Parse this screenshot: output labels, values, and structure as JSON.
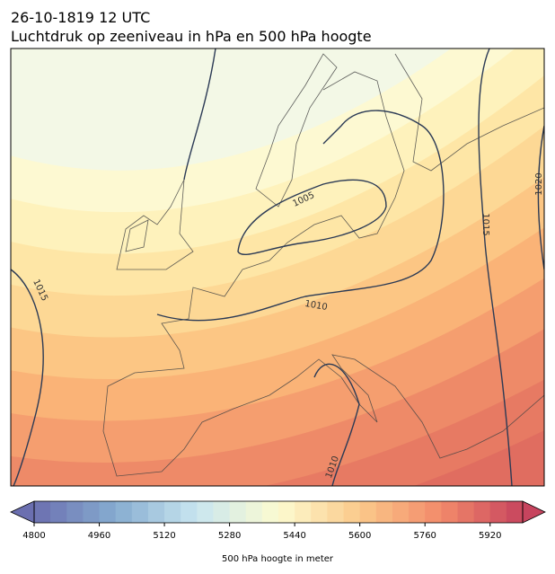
{
  "title": [
    "26-10-1819 12 UTC",
    "Luchtdruk op zeeniveau in hPa en 500 hPa hoogte"
  ],
  "isobar_labels": [
    1005,
    1010,
    1015,
    1015,
    1020,
    1010
  ],
  "colorbar": {
    "label": "500 hPa hoogte in meter",
    "range": [
      4800,
      6000
    ],
    "step": 40,
    "ticks": [
      4800,
      4960,
      5120,
      5280,
      5440,
      5600,
      5760,
      5920
    ],
    "colormap": [
      "#6b6fb0",
      "#86acd0",
      "#c9e6f0",
      "#fcfbd0",
      "#fbc98a",
      "#f28a6a",
      "#c7445e"
    ]
  }
}
